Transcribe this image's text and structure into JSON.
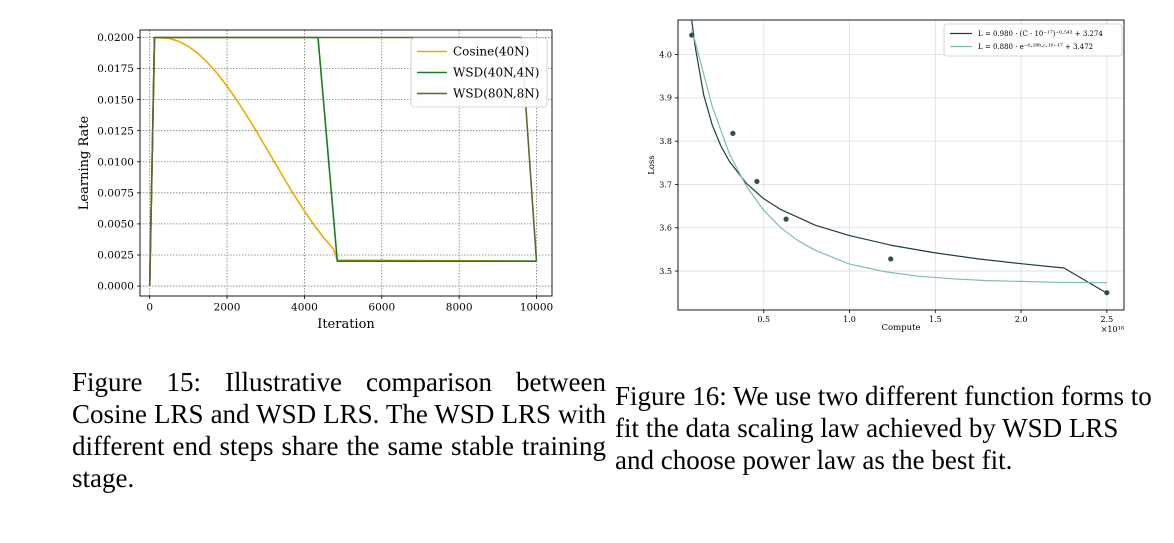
{
  "figures": [
    {
      "caption": "Figure 15: Illustrative comparison between Cosine LRS and WSD LRS. The WSD LRS with different end steps share the same stable training stage."
    },
    {
      "caption": "Figure 16: We use two different function forms to fit the data scaling law achieved by WSD LRS and choose power law as the best fit."
    }
  ],
  "chart_data": [
    {
      "type": "line",
      "title": "",
      "xlabel": "Iteration",
      "ylabel": "Learning Rate",
      "xlim": [
        -250,
        10400
      ],
      "ylim": [
        -0.0008,
        0.0206
      ],
      "xticks": [
        0,
        2000,
        4000,
        6000,
        8000,
        10000
      ],
      "xtick_labels": [
        "0",
        "2000",
        "4000",
        "6000",
        "8000",
        "10000"
      ],
      "yticks": [
        0,
        0.0025,
        0.005,
        0.0075,
        0.01,
        0.0125,
        0.015,
        0.0175,
        0.02
      ],
      "ytick_labels": [
        "0.0000",
        "0.0025",
        "0.0050",
        "0.0075",
        "0.0100",
        "0.0125",
        "0.0150",
        "0.0175",
        "0.0200"
      ],
      "grid": true,
      "legend_position": "top-right",
      "series": [
        {
          "name": "Cosine(40N)",
          "color": "#f2a900",
          "x": [
            0,
            125,
            250,
            500,
            750,
            1000,
            1250,
            1500,
            1750,
            2000,
            2250,
            2500,
            2750,
            3000,
            3250,
            3500,
            3750,
            4000,
            4250,
            4500,
            4750,
            4850,
            10000
          ],
          "y": [
            0,
            0.02,
            0.01998,
            0.01993,
            0.01969,
            0.01928,
            0.0187,
            0.01797,
            0.01709,
            0.01609,
            0.01497,
            0.01376,
            0.01249,
            0.01118,
            0.00985,
            0.00853,
            0.00725,
            0.00603,
            0.0049,
            0.00388,
            0.00299,
            0.0021,
            0.002
          ]
        },
        {
          "name": "WSD(40N,4N)",
          "color": "#1e7a1e",
          "x": [
            0,
            125,
            4350,
            4850,
            10000
          ],
          "y": [
            0,
            0.02,
            0.02,
            0.002,
            0.002
          ]
        },
        {
          "name": "WSD(80N,8N)",
          "color": "#556b2f",
          "x": [
            0,
            125,
            9600,
            10000
          ],
          "y": [
            0,
            0.02,
            0.02,
            0.002
          ]
        }
      ]
    },
    {
      "type": "scatter",
      "title": "",
      "xlabel": "Compute",
      "ylabel": "Loss",
      "x_scale_label": "×10¹⁸",
      "xlim": [
        0.0,
        2.6
      ],
      "ylim": [
        3.41,
        4.08
      ],
      "xticks": [
        0.5,
        1.0,
        1.5,
        2.0,
        2.5
      ],
      "xtick_labels": [
        "0.5",
        "1.0",
        "1.5",
        "2.0",
        "2.5"
      ],
      "yticks": [
        3.5,
        3.6,
        3.7,
        3.8,
        3.9,
        4.0
      ],
      "ytick_labels": [
        "3.5",
        "3.6",
        "3.7",
        "3.8",
        "3.9",
        "4.0"
      ],
      "grid": true,
      "legend_position": "top-right",
      "points": {
        "x": [
          0.08,
          0.32,
          0.46,
          0.63,
          1.24,
          2.5
        ],
        "y": [
          4.045,
          3.818,
          3.707,
          3.62,
          3.528,
          3.45
        ],
        "color": "#2f4f4f"
      },
      "series": [
        {
          "name": "L = 0.980 · (C · 10⁻¹⁷)⁻⁰·⁵⁴³ + 3.274",
          "color": "#1f3d3d",
          "x": [
            0.08,
            0.1,
            0.15,
            0.2,
            0.25,
            0.3,
            0.4,
            0.5,
            0.6,
            0.8,
            1.0,
            1.25,
            1.5,
            1.75,
            2.0,
            2.25,
            2.5
          ],
          "y": [
            4.08,
            4.018,
            3.907,
            3.837,
            3.789,
            3.753,
            3.702,
            3.667,
            3.642,
            3.606,
            3.582,
            3.559,
            3.542,
            3.528,
            3.517,
            3.507,
            3.449
          ]
        },
        {
          "name": "L = 0.880 · e⁻⁰·²⁸⁸·ᶜ·¹⁰⁻¹⁷ + 3.472",
          "color": "#7fbfa8",
          "x": [
            0.08,
            0.2,
            0.3,
            0.4,
            0.5,
            0.6,
            0.7,
            0.8,
            1.0,
            1.2,
            1.4,
            1.6,
            1.8,
            2.0,
            2.2,
            2.5
          ],
          "y": [
            4.06,
            3.88,
            3.77,
            3.695,
            3.64,
            3.6,
            3.57,
            3.548,
            3.516,
            3.499,
            3.488,
            3.482,
            3.478,
            3.476,
            3.474,
            3.473
          ]
        }
      ]
    }
  ]
}
